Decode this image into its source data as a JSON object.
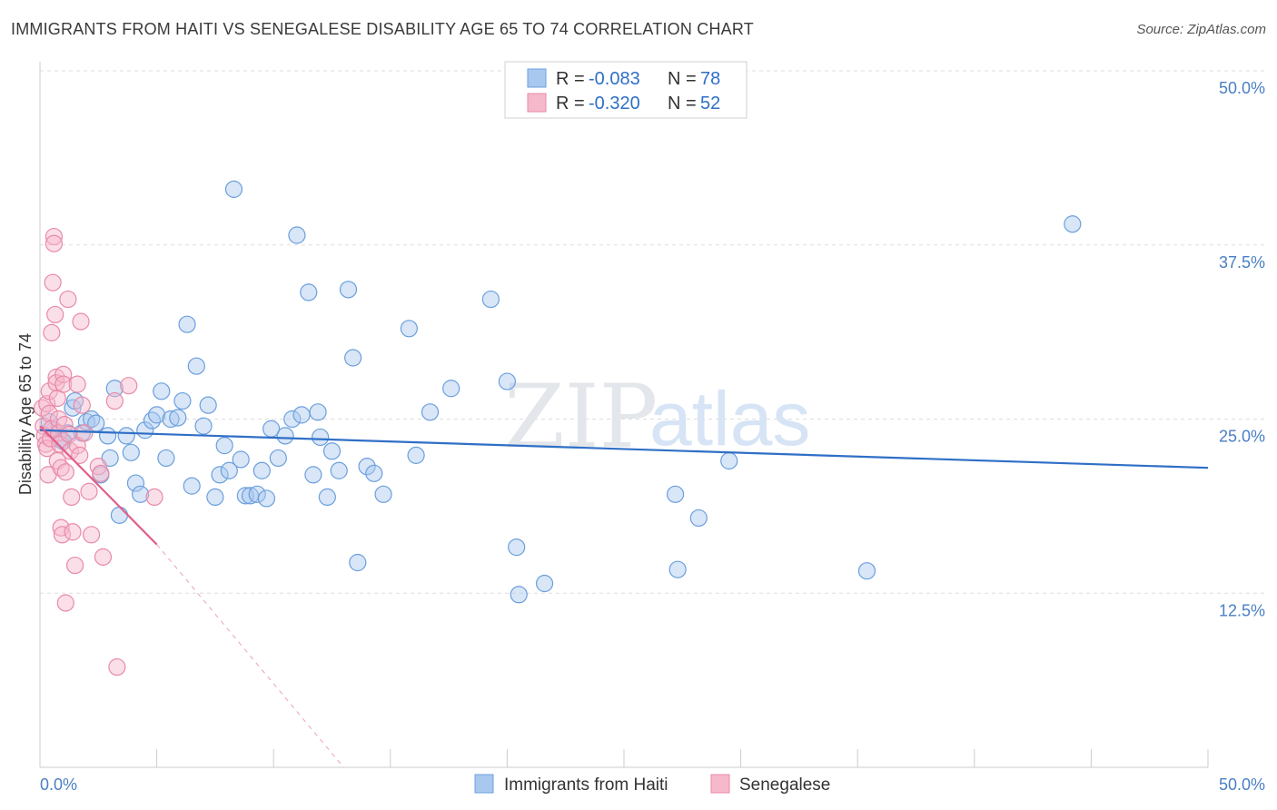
{
  "header": {
    "title": "IMMIGRANTS FROM HAITI VS SENEGALESE DISABILITY AGE 65 TO 74 CORRELATION CHART",
    "source": "Source: ZipAtlas.com"
  },
  "watermark": {
    "zip": "ZIP",
    "atlas": "atlas"
  },
  "colors": {
    "haiti_fill": "#a9c8ef",
    "haiti_stroke": "#6b9fdc",
    "haiti_line": "#2f6fc6",
    "senegal_fill": "#f6b8cb",
    "senegal_stroke": "#e88aa8",
    "senegal_line": "#e0608a",
    "grid": "#dddddd",
    "tick_label": "#4a7fc4"
  },
  "legend": {
    "rows": [
      {
        "r_label": "R = ",
        "r_value": "-0.083",
        "n_label": "N = ",
        "n_value": "78"
      },
      {
        "r_label": "R = ",
        "r_value": "-0.320",
        "n_label": "N = ",
        "n_value": "52"
      }
    ]
  },
  "chart_data": {
    "type": "scatter",
    "title": "IMMIGRANTS FROM HAITI VS SENEGALESE DISABILITY AGE 65 TO 74 CORRELATION CHART",
    "xlabel": "",
    "ylabel": "Disability Age 65 to 74",
    "xlim": [
      0,
      50
    ],
    "ylim": [
      0,
      50
    ],
    "x_tick_labels": [
      "0.0%",
      "50.0%"
    ],
    "y_tick_labels": [
      "12.5%",
      "25.0%",
      "37.5%",
      "50.0%"
    ],
    "y_ticks": [
      12.5,
      25.0,
      37.5,
      50.0
    ],
    "grid": true,
    "legend_position": "top-center",
    "series": [
      {
        "name": "Immigrants from Haiti",
        "R": -0.083,
        "N": 78,
        "trend": {
          "x": [
            0,
            50
          ],
          "y": [
            24.2,
            21.5
          ],
          "style": "solid"
        },
        "points": [
          [
            0.6,
            24.2
          ],
          [
            0.9,
            23.5
          ],
          [
            1.2,
            24.0
          ],
          [
            1.4,
            25.8
          ],
          [
            1.5,
            26.3
          ],
          [
            1.8,
            24.0
          ],
          [
            2.0,
            24.8
          ],
          [
            2.2,
            25.0
          ],
          [
            2.4,
            24.7
          ],
          [
            2.6,
            21.0
          ],
          [
            2.9,
            23.8
          ],
          [
            3.0,
            22.2
          ],
          [
            3.2,
            27.2
          ],
          [
            3.4,
            18.1
          ],
          [
            3.7,
            23.8
          ],
          [
            3.9,
            22.6
          ],
          [
            4.1,
            20.4
          ],
          [
            4.3,
            19.6
          ],
          [
            4.5,
            24.2
          ],
          [
            4.8,
            24.9
          ],
          [
            5.0,
            25.3
          ],
          [
            5.2,
            27.0
          ],
          [
            5.4,
            22.2
          ],
          [
            5.6,
            25.0
          ],
          [
            5.9,
            25.1
          ],
          [
            6.1,
            26.3
          ],
          [
            6.3,
            31.8
          ],
          [
            6.5,
            20.2
          ],
          [
            6.7,
            28.8
          ],
          [
            7.0,
            24.5
          ],
          [
            7.2,
            26.0
          ],
          [
            7.5,
            19.4
          ],
          [
            7.7,
            21.0
          ],
          [
            7.9,
            23.1
          ],
          [
            8.1,
            21.3
          ],
          [
            8.3,
            41.5
          ],
          [
            8.6,
            22.1
          ],
          [
            8.8,
            19.5
          ],
          [
            9.0,
            19.5
          ],
          [
            9.3,
            19.6
          ],
          [
            9.5,
            21.3
          ],
          [
            9.7,
            19.3
          ],
          [
            9.9,
            24.3
          ],
          [
            10.2,
            22.2
          ],
          [
            10.5,
            23.8
          ],
          [
            10.8,
            25.0
          ],
          [
            11.0,
            38.2
          ],
          [
            11.2,
            25.3
          ],
          [
            11.5,
            34.1
          ],
          [
            11.7,
            21.0
          ],
          [
            11.9,
            25.5
          ],
          [
            12.0,
            23.7
          ],
          [
            12.3,
            19.4
          ],
          [
            12.5,
            22.7
          ],
          [
            12.8,
            21.3
          ],
          [
            13.2,
            34.3
          ],
          [
            13.4,
            29.4
          ],
          [
            13.6,
            14.7
          ],
          [
            14.0,
            21.6
          ],
          [
            14.3,
            21.1
          ],
          [
            14.7,
            19.6
          ],
          [
            15.8,
            31.5
          ],
          [
            16.1,
            22.4
          ],
          [
            16.7,
            25.5
          ],
          [
            17.6,
            27.2
          ],
          [
            19.3,
            33.6
          ],
          [
            20.0,
            27.7
          ],
          [
            20.4,
            15.8
          ],
          [
            20.5,
            12.4
          ],
          [
            21.6,
            13.2
          ],
          [
            27.2,
            19.6
          ],
          [
            27.3,
            14.2
          ],
          [
            28.2,
            17.9
          ],
          [
            29.5,
            22.0
          ],
          [
            35.4,
            14.1
          ],
          [
            44.2,
            39.0
          ],
          [
            0.4,
            24.8
          ],
          [
            1.0,
            23.4
          ]
        ]
      },
      {
        "name": "Senegalese",
        "R": -0.32,
        "N": 52,
        "trend": {
          "x": [
            0,
            5.0
          ],
          "y": [
            24.5,
            16.0
          ],
          "style": "solid",
          "extension": {
            "x": [
              5.0,
              13.0
            ],
            "y": [
              16.0,
              0.0
            ],
            "style": "dashed"
          }
        },
        "points": [
          [
            0.1,
            25.8
          ],
          [
            0.15,
            24.5
          ],
          [
            0.2,
            23.8
          ],
          [
            0.25,
            23.2
          ],
          [
            0.3,
            26.1
          ],
          [
            0.3,
            22.9
          ],
          [
            0.35,
            21.0
          ],
          [
            0.4,
            27.0
          ],
          [
            0.4,
            25.4
          ],
          [
            0.45,
            23.6
          ],
          [
            0.5,
            24.3
          ],
          [
            0.5,
            31.2
          ],
          [
            0.55,
            34.8
          ],
          [
            0.6,
            38.1
          ],
          [
            0.6,
            37.6
          ],
          [
            0.65,
            32.5
          ],
          [
            0.7,
            28.0
          ],
          [
            0.7,
            27.6
          ],
          [
            0.75,
            26.5
          ],
          [
            0.75,
            22.0
          ],
          [
            0.8,
            25.0
          ],
          [
            0.8,
            24.0
          ],
          [
            0.85,
            23.2
          ],
          [
            0.9,
            21.5
          ],
          [
            0.9,
            17.2
          ],
          [
            0.95,
            16.7
          ],
          [
            1.0,
            28.2
          ],
          [
            1.0,
            27.5
          ],
          [
            1.05,
            24.6
          ],
          [
            1.1,
            21.2
          ],
          [
            1.1,
            11.8
          ],
          [
            1.2,
            33.6
          ],
          [
            1.25,
            23.9
          ],
          [
            1.3,
            22.7
          ],
          [
            1.35,
            19.4
          ],
          [
            1.4,
            16.9
          ],
          [
            1.5,
            14.5
          ],
          [
            1.6,
            27.5
          ],
          [
            1.6,
            23.1
          ],
          [
            1.7,
            22.4
          ],
          [
            1.75,
            32.0
          ],
          [
            1.8,
            26.0
          ],
          [
            1.9,
            24.0
          ],
          [
            2.1,
            19.8
          ],
          [
            2.2,
            16.7
          ],
          [
            2.5,
            21.6
          ],
          [
            2.6,
            21.1
          ],
          [
            2.7,
            15.1
          ],
          [
            3.2,
            26.3
          ],
          [
            3.8,
            27.4
          ],
          [
            3.3,
            7.2
          ],
          [
            4.9,
            19.4
          ]
        ]
      }
    ]
  },
  "bottom_legend": {
    "items": [
      "Immigrants from Haiti",
      "Senegalese"
    ]
  }
}
